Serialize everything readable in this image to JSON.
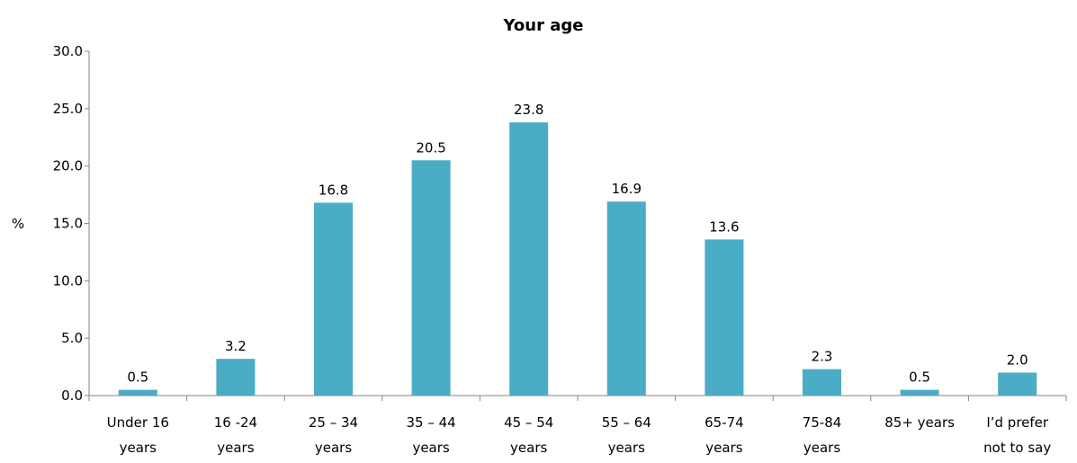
{
  "chart_data": {
    "type": "bar",
    "title": "Your age",
    "xlabel": "",
    "ylabel": "%",
    "ylim": [
      0,
      30
    ],
    "yticks": [
      "0.0",
      "5.0",
      "10.0",
      "15.0",
      "20.0",
      "25.0",
      "30.0"
    ],
    "grid": false,
    "legend": "none",
    "bar_color": "#4BACC6",
    "categories": [
      [
        "Under 16",
        "years"
      ],
      [
        "16 -24",
        "years"
      ],
      [
        "25 – 34",
        "years"
      ],
      [
        "35 – 44",
        "years"
      ],
      [
        "45 – 54",
        "years"
      ],
      [
        "55 – 64",
        "years"
      ],
      [
        "65-74",
        "years"
      ],
      [
        "75-84",
        "years"
      ],
      [
        "85+ years"
      ],
      [
        "I’d prefer",
        "not to say"
      ]
    ],
    "values": [
      0.5,
      3.2,
      16.8,
      20.5,
      23.8,
      16.9,
      13.6,
      2.3,
      0.5,
      2.0
    ],
    "data_labels": [
      "0.5",
      "3.2",
      "16.8",
      "20.5",
      "23.8",
      "16.9",
      "13.6",
      "2.3",
      "0.5",
      "2.0"
    ]
  }
}
